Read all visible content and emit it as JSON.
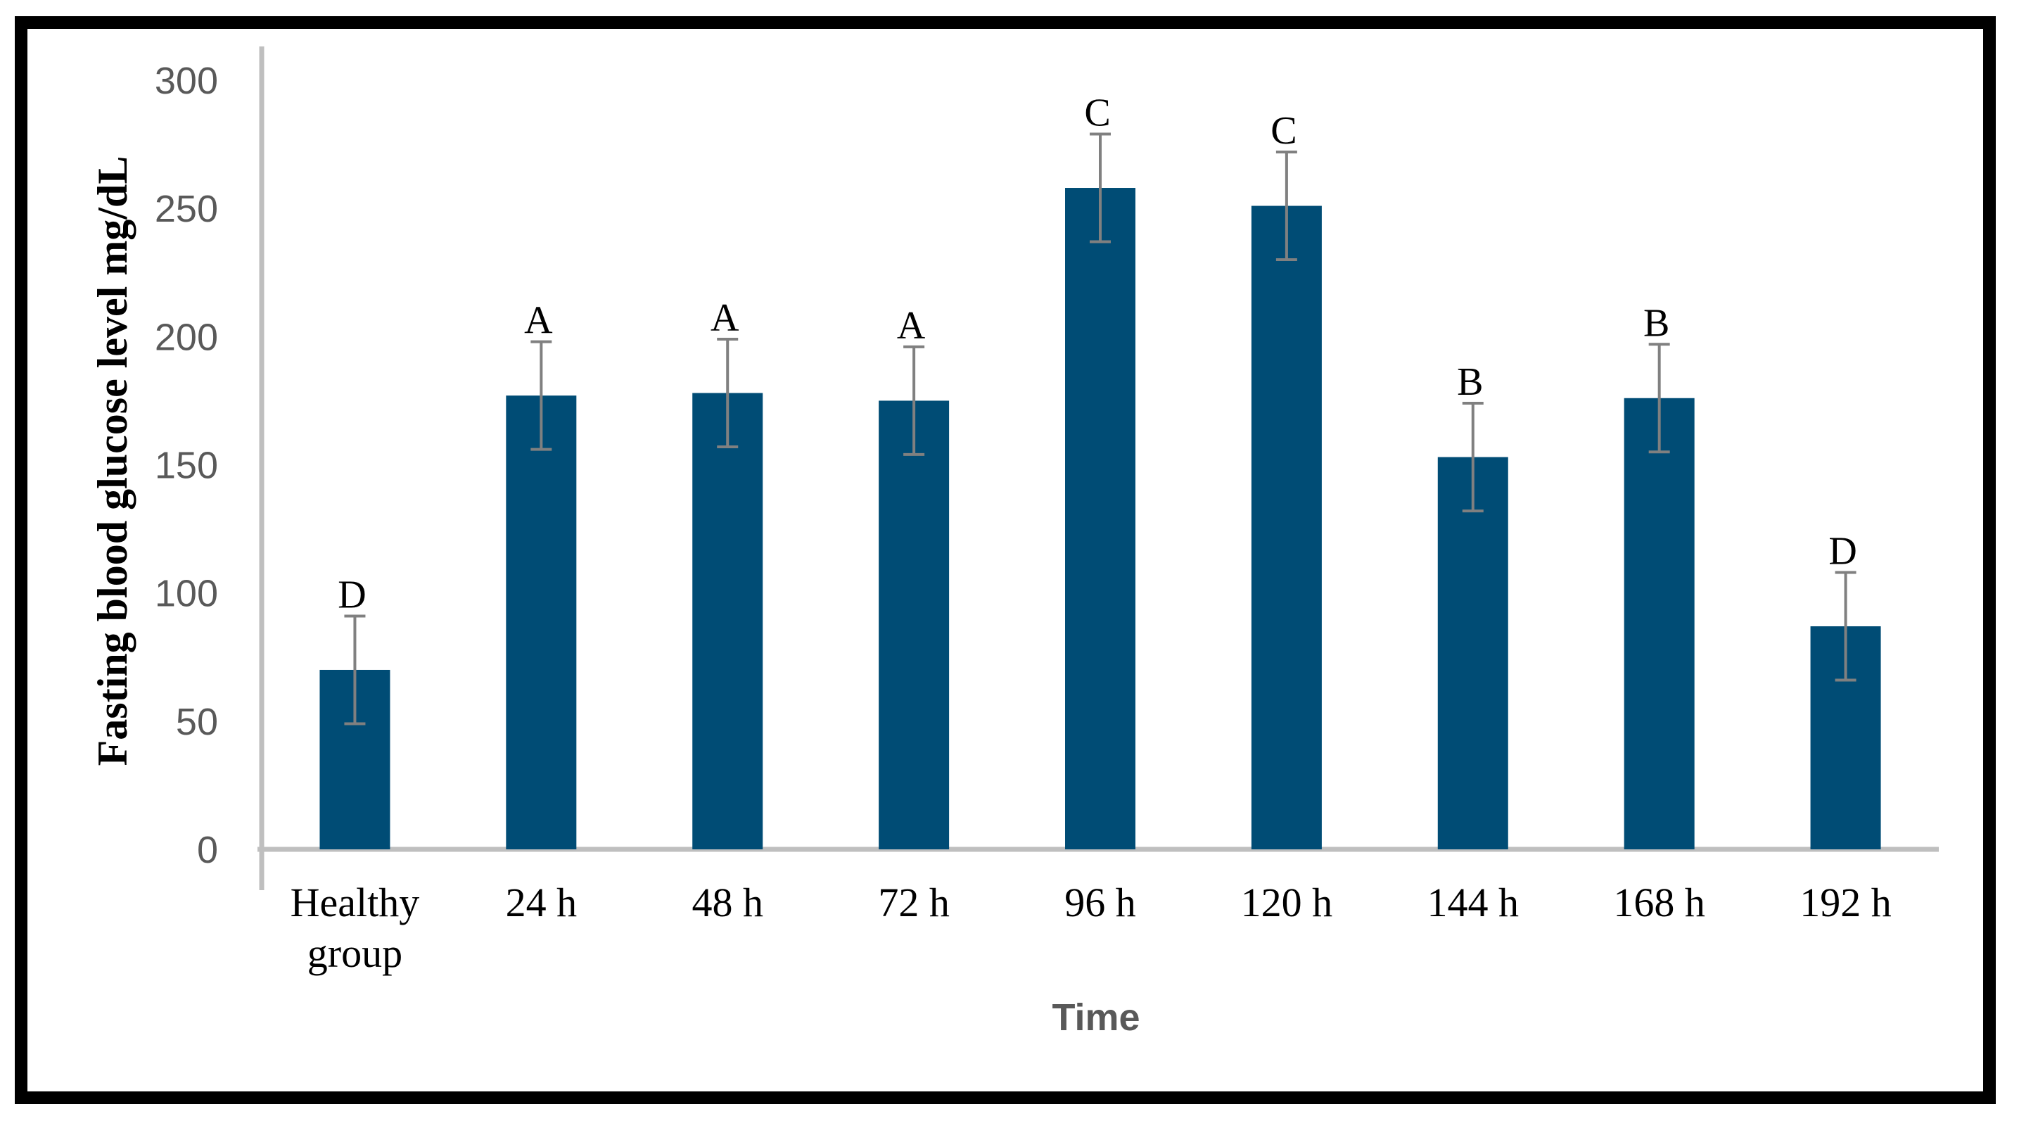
{
  "chart_data": {
    "type": "bar",
    "xlabel": "Time",
    "ylabel": "Fasting blood glucose level mg/dL",
    "ylim": [
      0,
      300
    ],
    "yticks": [
      "0",
      "50",
      "100",
      "150",
      "200",
      "250",
      "300"
    ],
    "grid": false,
    "categories": [
      [
        "Healthy",
        "group"
      ],
      [
        "24 h"
      ],
      [
        "48 h"
      ],
      [
        "72 h"
      ],
      [
        "96 h"
      ],
      [
        "120 h"
      ],
      [
        "144 h"
      ],
      [
        "168 h"
      ],
      [
        "192 h"
      ]
    ],
    "values": [
      70,
      177,
      178,
      175,
      258,
      251,
      153,
      176,
      87
    ],
    "error": [
      21,
      21,
      21,
      21,
      21,
      21,
      21,
      21,
      21
    ],
    "significance_letters": [
      "D",
      "A",
      "A",
      "A",
      "C",
      "C",
      "B",
      "B",
      "D"
    ],
    "bar_color": "#004c75",
    "error_color": "#808080",
    "axis_color": "#bfbfbf"
  }
}
